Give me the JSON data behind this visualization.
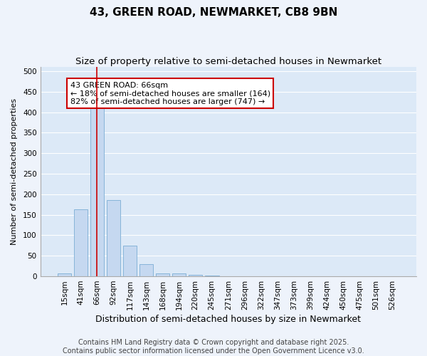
{
  "title": "43, GREEN ROAD, NEWMARKET, CB8 9BN",
  "subtitle": "Size of property relative to semi-detached houses in Newmarket",
  "xlabel": "Distribution of semi-detached houses by size in Newmarket",
  "ylabel": "Number of semi-detached properties",
  "categories": [
    "15sqm",
    "41sqm",
    "66sqm",
    "92sqm",
    "117sqm",
    "143sqm",
    "168sqm",
    "194sqm",
    "220sqm",
    "245sqm",
    "271sqm",
    "296sqm",
    "322sqm",
    "347sqm",
    "373sqm",
    "399sqm",
    "424sqm",
    "450sqm",
    "475sqm",
    "501sqm",
    "526sqm"
  ],
  "values": [
    7,
    164,
    432,
    185,
    75,
    30,
    7,
    7,
    3,
    1,
    0,
    0,
    0,
    0,
    0,
    0,
    0,
    0,
    0,
    0,
    0
  ],
  "bar_color": "#c5d8f0",
  "bar_edge_color": "#7aadd4",
  "highlight_bar_index": 2,
  "highlight_line_color": "#cc0000",
  "annotation_text": "43 GREEN ROAD: 66sqm\n← 18% of semi-detached houses are smaller (164)\n82% of semi-detached houses are larger (747) →",
  "annotation_box_color": "#ffffff",
  "annotation_box_edge_color": "#cc0000",
  "ylim": [
    0,
    510
  ],
  "yticks": [
    0,
    50,
    100,
    150,
    200,
    250,
    300,
    350,
    400,
    450,
    500
  ],
  "background_color": "#eef3fb",
  "plot_background_color": "#dce9f7",
  "grid_color": "#ffffff",
  "footer_line1": "Contains HM Land Registry data © Crown copyright and database right 2025.",
  "footer_line2": "Contains public sector information licensed under the Open Government Licence v3.0.",
  "title_fontsize": 11,
  "subtitle_fontsize": 9.5,
  "xlabel_fontsize": 9,
  "ylabel_fontsize": 8,
  "tick_fontsize": 7.5,
  "footer_fontsize": 7,
  "annotation_fontsize": 8
}
